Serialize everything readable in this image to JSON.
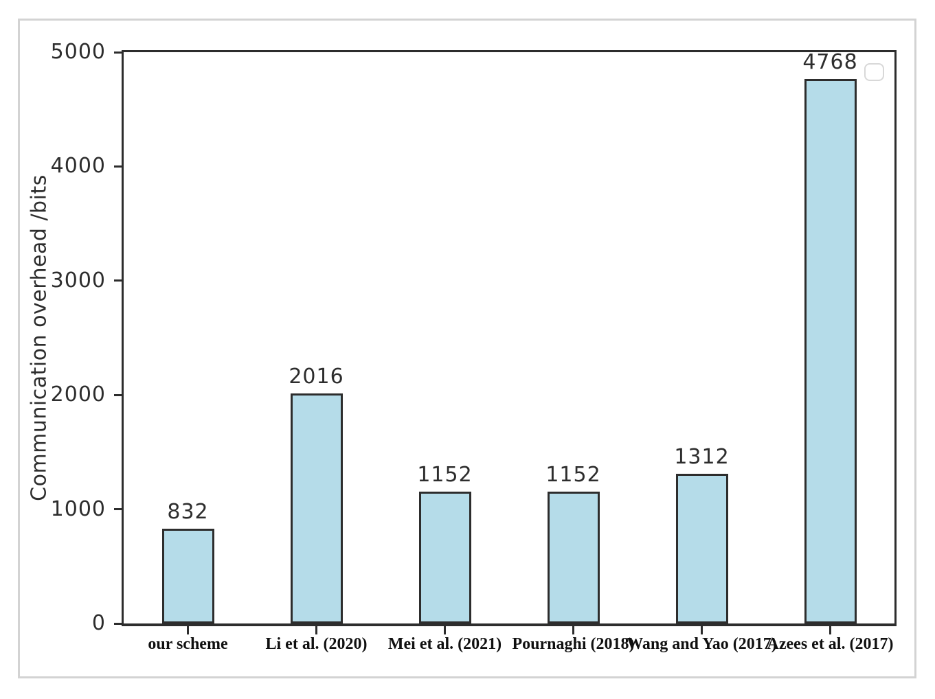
{
  "figure": {
    "background": "#ffffff",
    "frame_border_color": "#d3d3d3"
  },
  "chart_data": {
    "type": "bar",
    "title": "",
    "ylabel": "Communication overhead /bits",
    "xlabel": "",
    "categories": [
      "our scheme",
      "Li et al. (2020)",
      "Mei et al. (2021)",
      "Pournaghi (2018)",
      "Wang and Yao (2017)",
      "Azees et al. (2017)"
    ],
    "values": [
      832,
      2016,
      1152,
      1152,
      1312,
      4768
    ],
    "bar_value_labels": [
      "832",
      "2016",
      "1152",
      "1152",
      "1312",
      "4768"
    ],
    "ylim": [
      0,
      5000
    ],
    "yticks": [
      0,
      1000,
      2000,
      3000,
      4000,
      5000
    ],
    "grid": false,
    "legend": {
      "visible": true,
      "entries": [],
      "position": "upper-right"
    },
    "colors": {
      "bar_fill": "#b5dce9",
      "bar_edge": "#2d2d2d",
      "axis": "#2d2d2d",
      "tick_text": "#2d2d2d",
      "category_text": "#101010"
    }
  }
}
